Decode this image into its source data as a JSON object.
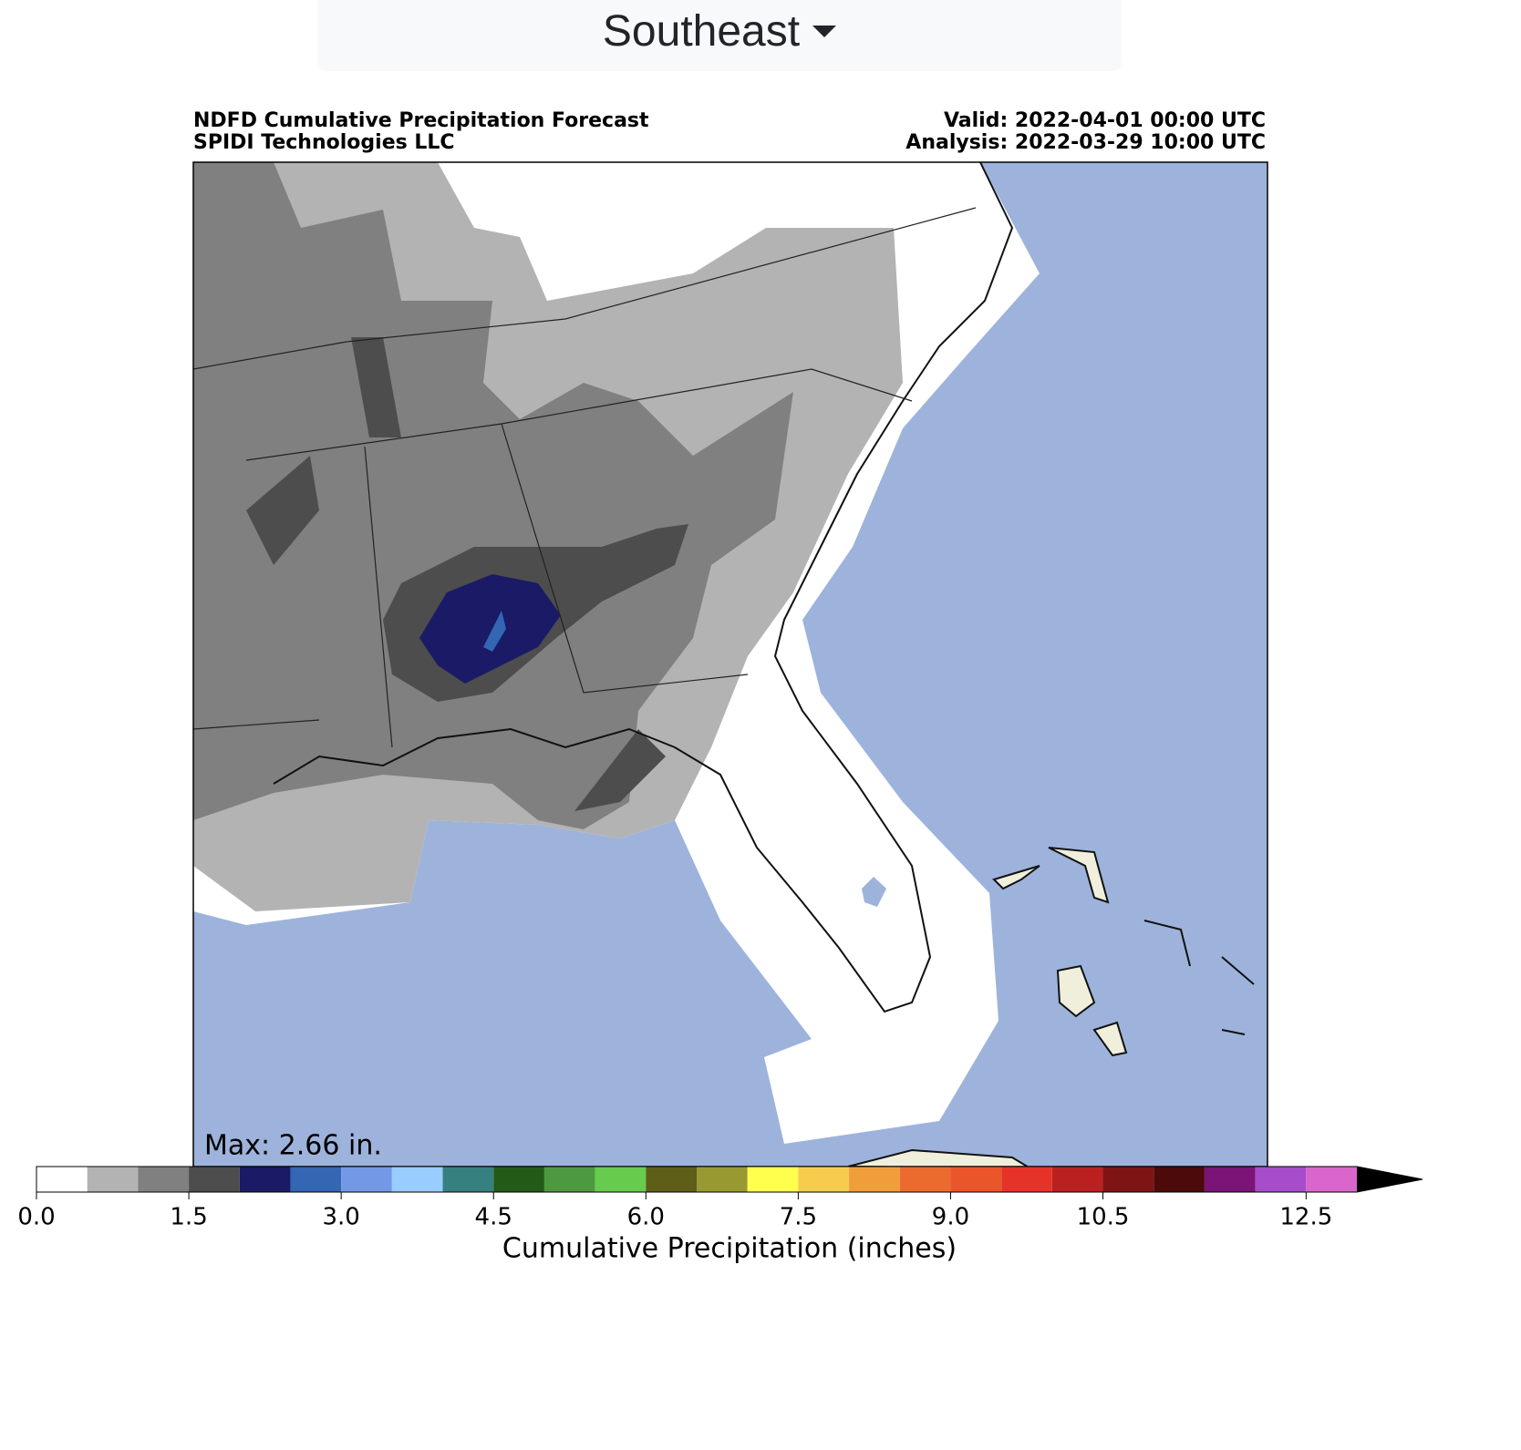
{
  "dropdown": {
    "label": "Southeast"
  },
  "map": {
    "title_left": [
      "NDFD Cumulative Precipitation Forecast",
      "SPIDI Technologies LLC"
    ],
    "title_right": [
      "Valid: 2022-04-01 00:00 UTC",
      "Analysis: 2022-03-29 10:00 UTC"
    ],
    "annotation": "Max: 2.66 in."
  },
  "colorbar": {
    "label": "Cumulative Precipitation (inches)",
    "bounds": [
      0,
      0.5,
      1,
      1.5,
      2,
      2.5,
      3,
      3.5,
      4,
      4.5,
      5,
      5.5,
      6,
      6.5,
      7,
      7.5,
      8,
      8.5,
      9,
      9.5,
      10,
      10.5,
      11,
      11.5,
      12,
      12.5,
      13
    ],
    "colors": [
      "#ffffff",
      "#b3b3b3",
      "#808080",
      "#4d4d4d",
      "#1a1a66",
      "#3366b3",
      "#7399e6",
      "#99ccff",
      "#368080",
      "#245a18",
      "#4d9940",
      "#66cc4d",
      "#5e5e18",
      "#999932",
      "#ffff4d",
      "#f5cc4d",
      "#f09e3c",
      "#eb6b2e",
      "#eb552a",
      "#e6332a",
      "#bb2020",
      "#7f1414",
      "#4d0a0a",
      "#7a1476",
      "#a64dcc",
      "#d966cc"
    ],
    "extend_color": "#000000",
    "ticks": [
      {
        "value": 0,
        "label": "0.0"
      },
      {
        "value": 1.5,
        "label": "1.5"
      },
      {
        "value": 3,
        "label": "3.0"
      },
      {
        "value": 4.5,
        "label": "4.5"
      },
      {
        "value": 6,
        "label": "6.0"
      },
      {
        "value": 7.5,
        "label": "7.5"
      },
      {
        "value": 9,
        "label": "9.0"
      },
      {
        "value": 10.5,
        "label": "10.5"
      },
      {
        "value": 12.5,
        "label": "12.5"
      }
    ]
  }
}
